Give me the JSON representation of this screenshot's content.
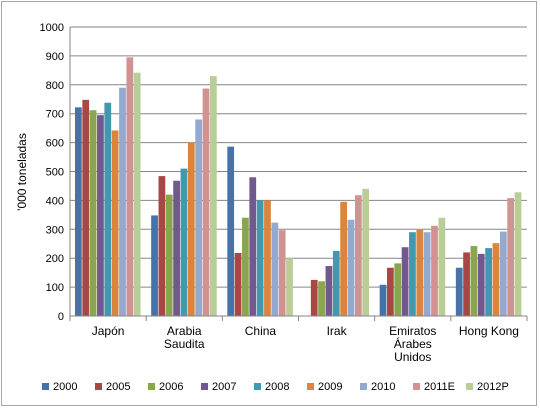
{
  "chart_data": {
    "type": "bar",
    "title": "",
    "xlabel": "",
    "ylabel": "'000 toneladas",
    "ylim": [
      0,
      1000
    ],
    "yticks": [
      0,
      100,
      200,
      300,
      400,
      500,
      600,
      700,
      800,
      900,
      1000
    ],
    "grid": true,
    "legend": "bottom",
    "categories": [
      [
        "Japón"
      ],
      [
        "Arabia",
        "Saudita"
      ],
      [
        "China"
      ],
      [
        "Irak"
      ],
      [
        "Emiratos",
        "Árabes",
        "Unidos"
      ],
      [
        "Hong Kong"
      ]
    ],
    "series": [
      {
        "name": "2000",
        "color": "#4572a7",
        "values": [
          722,
          348,
          586,
          null,
          108,
          167
        ]
      },
      {
        "name": "2005",
        "color": "#aa4643",
        "values": [
          748,
          484,
          218,
          125,
          167,
          220
        ]
      },
      {
        "name": "2006",
        "color": "#89a54e",
        "values": [
          712,
          420,
          340,
          120,
          182,
          242
        ]
      },
      {
        "name": "2007",
        "color": "#71588f",
        "values": [
          695,
          468,
          480,
          173,
          238,
          215
        ]
      },
      {
        "name": "2008",
        "color": "#4198af",
        "values": [
          738,
          510,
          400,
          225,
          290,
          235
        ]
      },
      {
        "name": "2009",
        "color": "#db843d",
        "values": [
          642,
          600,
          400,
          395,
          298,
          252
        ]
      },
      {
        "name": "2010",
        "color": "#93a9cf",
        "values": [
          790,
          680,
          323,
          333,
          290,
          292
        ]
      },
      {
        "name": "2011E",
        "color": "#d19392",
        "values": [
          895,
          787,
          297,
          418,
          312,
          408
        ]
      },
      {
        "name": "2012P",
        "color": "#b9cd96",
        "values": [
          842,
          830,
          200,
          440,
          340,
          428
        ]
      }
    ]
  }
}
